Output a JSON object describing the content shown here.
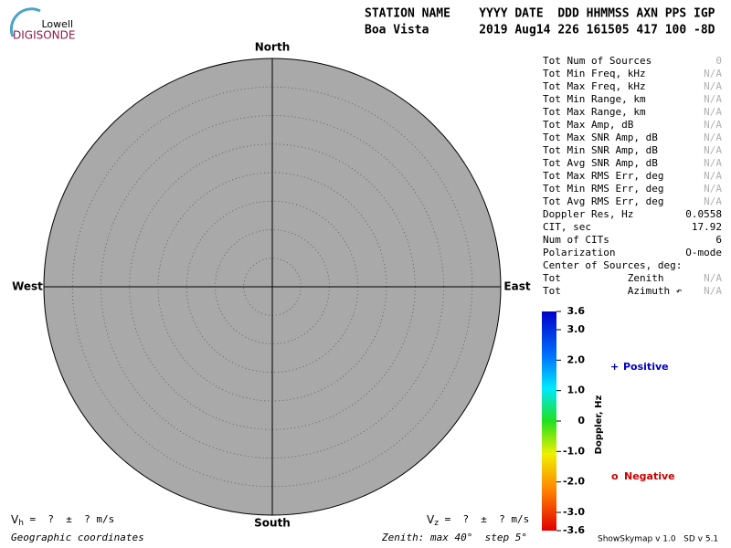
{
  "logo": {
    "top": "Lowell",
    "bottom": "DIGISONDE"
  },
  "header": {
    "labels": "STATION NAME    YYYY DATE  DDD HHMMSS AXN PPS IGP",
    "values": "Boa Vista       2019 Aug14 226 161505 417 100 -8D"
  },
  "directions": {
    "north": "North",
    "south": "South",
    "west": "West",
    "east": "East"
  },
  "stats": {
    "value_color": "#000000",
    "na_color": "#b0b0b0",
    "rows": [
      {
        "label": "Tot Num of Sources",
        "value": "0",
        "na": true
      },
      {
        "label": "Tot Min Freq, kHz",
        "value": "N/A",
        "na": true
      },
      {
        "label": "Tot Max Freq, kHz",
        "value": "N/A",
        "na": true
      },
      {
        "label": "Tot Min Range, km",
        "value": "N/A",
        "na": true
      },
      {
        "label": "Tot Max Range, km",
        "value": "N/A",
        "na": true
      },
      {
        "label": "Tot Max Amp, dB",
        "value": "N/A",
        "na": true
      },
      {
        "label": "Tot Max SNR Amp, dB",
        "value": "N/A",
        "na": true
      },
      {
        "label": "Tot Min SNR Amp, dB",
        "value": "N/A",
        "na": true
      },
      {
        "label": "Tot Avg SNR Amp, dB",
        "value": "N/A",
        "na": true
      },
      {
        "label": "Tot Max RMS Err, deg",
        "value": "N/A",
        "na": true
      },
      {
        "label": "Tot Min RMS Err, deg",
        "value": "N/A",
        "na": true
      },
      {
        "label": "Tot Avg RMS Err, deg",
        "value": "N/A",
        "na": true
      },
      {
        "label": "Doppler Res, Hz",
        "value": "0.0558",
        "na": false
      },
      {
        "label": "CIT, sec",
        "value": "17.92",
        "na": false
      },
      {
        "label": "Num of CITs",
        "value": "6",
        "na": false
      },
      {
        "label": "Polarization",
        "value": "O-mode",
        "na": false
      },
      {
        "label": "Center of Sources, deg:"
      },
      {
        "label": "Tot           Zenith",
        "value": "N/A",
        "na": true
      },
      {
        "label": "Tot           Azimuth ↶",
        "value": "N/A",
        "na": true
      }
    ]
  },
  "colorbar": {
    "title": "Doppler, Hz",
    "lim": [
      -3.6,
      3.6
    ],
    "ticks": [
      {
        "value": 3.6,
        "label": "3.6"
      },
      {
        "value": 3,
        "label": "3.0"
      },
      {
        "value": 2,
        "label": "2.0"
      },
      {
        "value": 1,
        "label": "1.0"
      },
      0,
      {
        "value": -1,
        "label": "-1.0"
      },
      {
        "value": -2,
        "label": "-2.0"
      },
      {
        "value": -3,
        "label": "-3.0"
      },
      {
        "value": -3.6,
        "label": "-3.6"
      }
    ]
  },
  "legend": {
    "positive": {
      "symbol": "+",
      "label": "Positive",
      "color": "#0000cc"
    },
    "negative": {
      "symbol": "o",
      "label": "Negative",
      "color": "#cc0000"
    }
  },
  "footer": {
    "vh": {
      "symbol": "V",
      "sub": "h",
      "text": " =  ?  ±  ? m/s"
    },
    "vz": {
      "symbol": "V",
      "sub": "z",
      "text": " =  ?  ±  ? m/s"
    },
    "coords": "Geographic coordinates",
    "zenith": "Zenith: max 40°  step 5°",
    "version": "ShowSkymap v 1.0   SD v 5.1"
  }
}
